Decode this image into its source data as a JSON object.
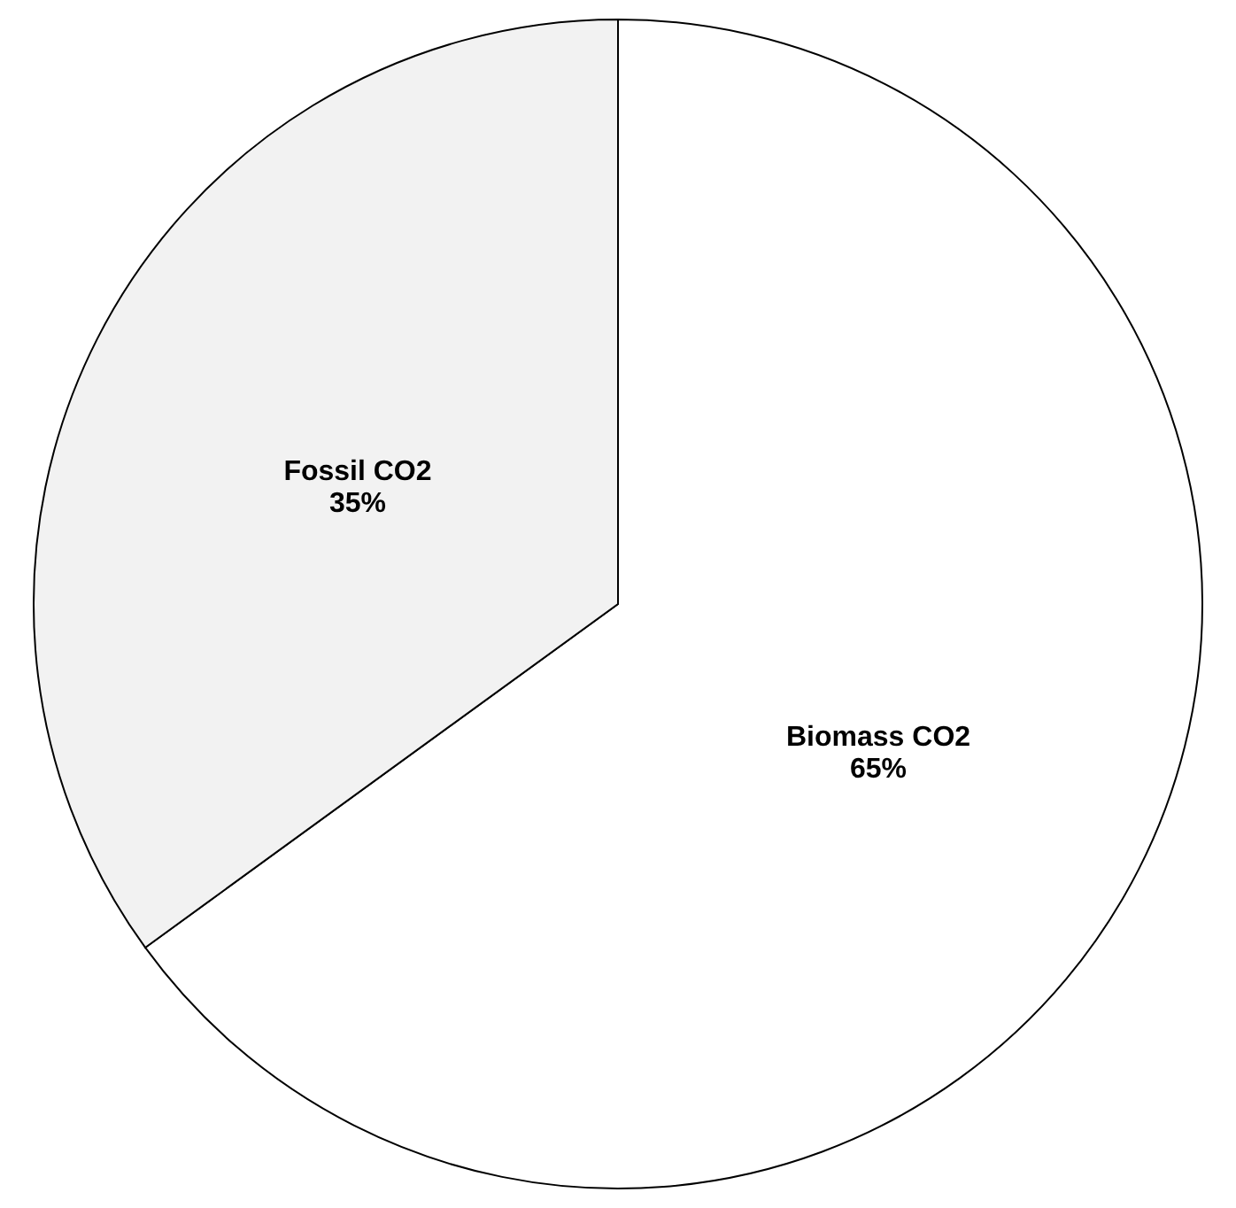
{
  "chart_data": {
    "type": "pie",
    "categories": [
      "Biomass CO2",
      "Fossil CO2"
    ],
    "values": [
      65,
      35
    ],
    "colors": [
      "#ffffff",
      "#f2f2f2"
    ],
    "value_labels": [
      "65%",
      "35%"
    ],
    "legend": false
  }
}
